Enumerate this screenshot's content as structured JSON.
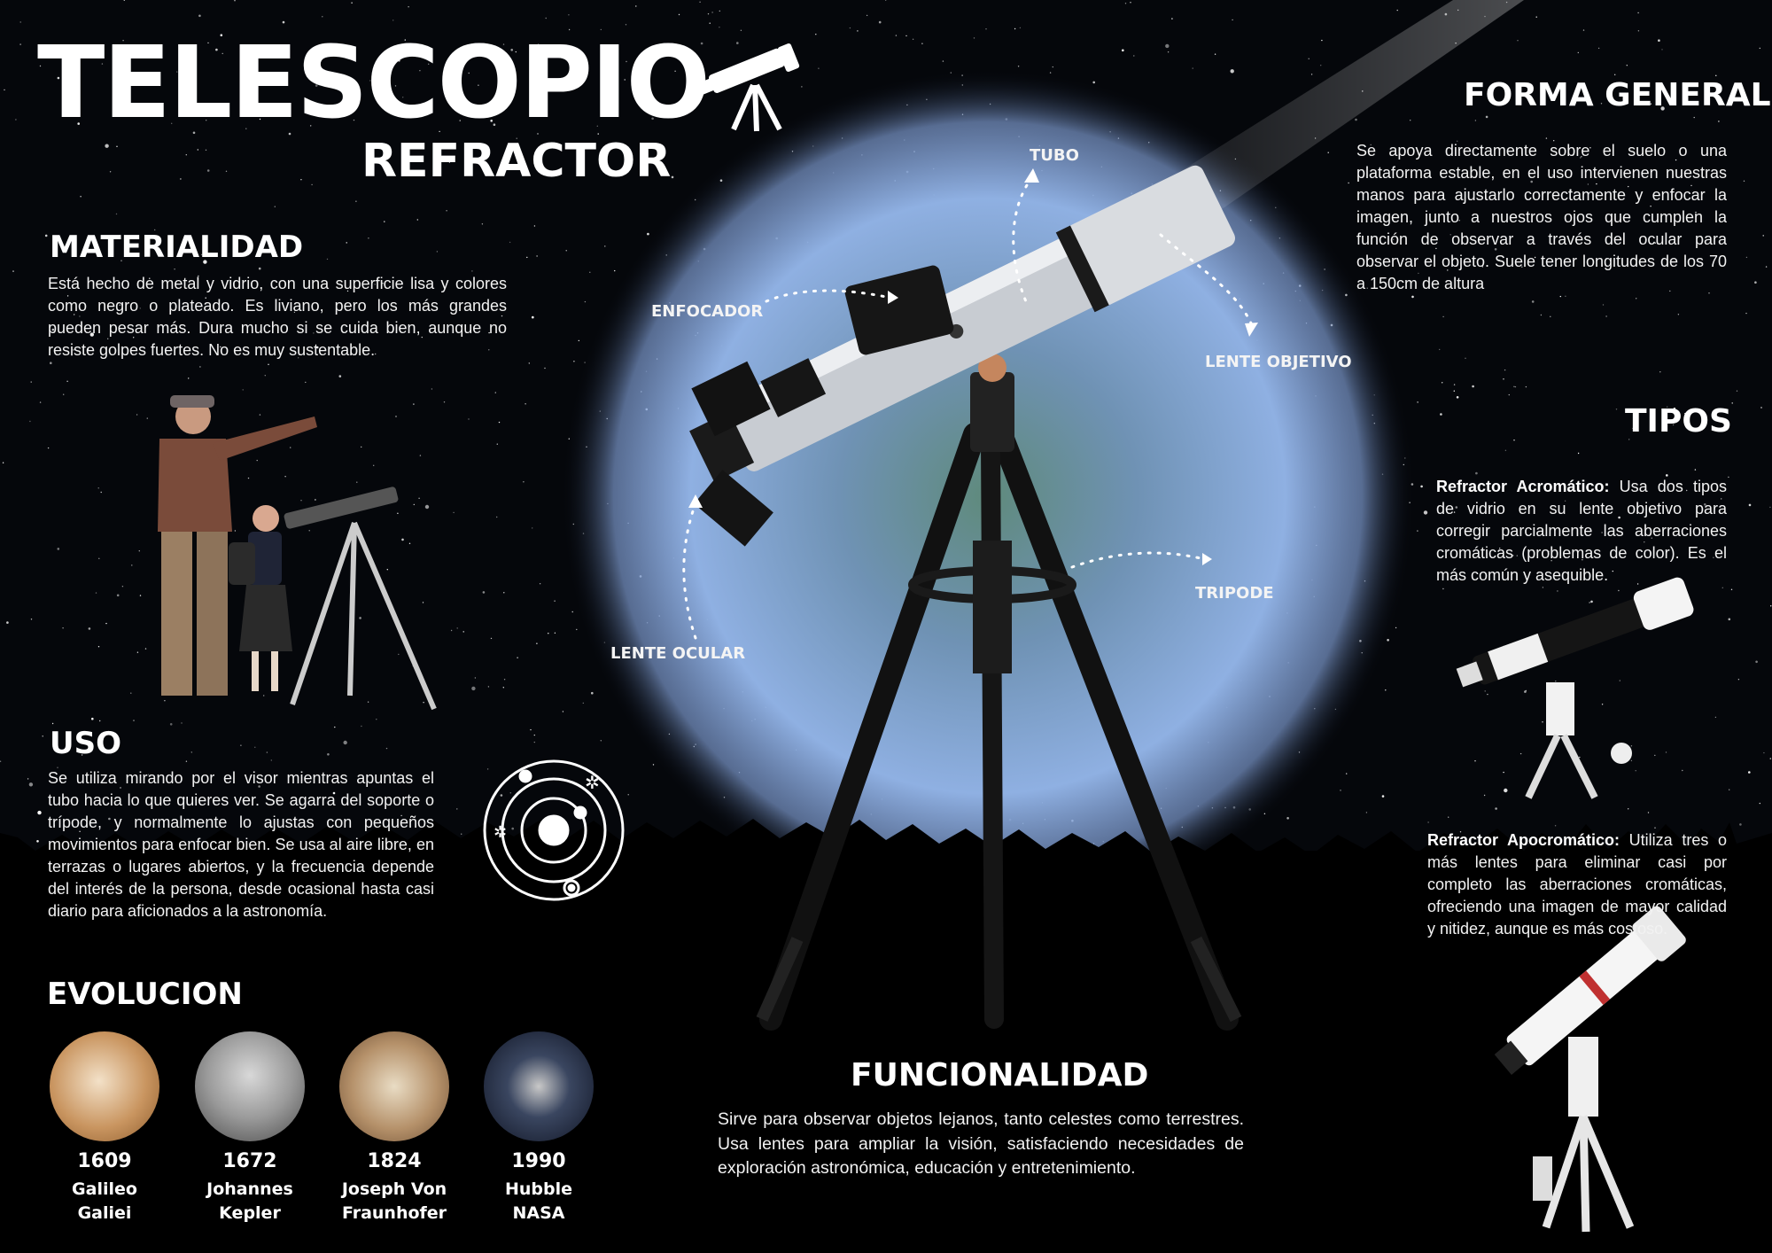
{
  "header": {
    "title": "TELESCOPIO",
    "subtitle": "REFRACTOR"
  },
  "materialidad": {
    "heading": "MATERIALIDAD",
    "text": "Está hecho de metal y vidrio, con una superficie lisa y colores como negro o plateado. Es liviano, pero los más grandes pueden pesar más. Dura mucho si se cuida bien, aunque no resiste golpes fuertes. No es muy sustentable."
  },
  "uso": {
    "heading": "USO",
    "text": "Se utiliza mirando por el visor mientras apuntas el tubo hacia lo que quieres ver. Se agarra del soporte o trípode, y normalmente lo ajustas con pequeños movimientos para enfocar bien. Se usa al aire libre, en terrazas o lugares abiertos, y la frecuencia depende del interés de la persona, desde ocasional hasta casi diario para aficionados a la astronomía."
  },
  "evolucion": {
    "heading": "EVOLUCION",
    "items": [
      {
        "year": "1609",
        "line1": "Galileo",
        "line2": "Galiei"
      },
      {
        "year": "1672",
        "line1": "Johannes",
        "line2": "Kepler"
      },
      {
        "year": "1824",
        "line1": "Joseph Von",
        "line2": "Fraunhofer"
      },
      {
        "year": "1990",
        "line1": "Hubble",
        "line2": "NASA"
      }
    ]
  },
  "parts": {
    "tubo": "TUBO",
    "enfocador": "ENFOCADOR",
    "lente_objetivo": "LENTE OBJETIVO",
    "tripode": "TRIPODE",
    "lente_ocular": "LENTE OCULAR"
  },
  "funcionalidad": {
    "heading": "FUNCIONALIDAD",
    "text": "Sirve para observar objetos lejanos, tanto celestes como terrestres. Usa lentes para ampliar la visión, satisfaciendo necesidades de exploración astronómica, educación y entretenimiento."
  },
  "forma_general": {
    "heading": "FORMA GENERAL",
    "text": "Se apoya directamente sobre el suelo o una plataforma estable, en el uso intervienen nuestras manos para ajustarlo correctamente y enfocar la imagen, junto a nuestros ojos que cumplen la función de observar a través del ocular para observar el objeto. Suele tener longitudes de los 70 a 150cm de altura"
  },
  "tipos": {
    "heading": "TIPOS",
    "acromatico": {
      "name": "Refractor Acromático:",
      "text": " Usa dos tipos de vidrio en su lente objetivo para corregir parcialmente las aberraciones cromáticas (problemas de color). Es el más común y asequible."
    },
    "apocromatico": {
      "name": "Refractor Apocromático:",
      "text": " Utiliza tres o más lentes para eliminar casi por completo las aberraciones cromáticas, ofreciendo una imagen de mayor calidad y nitidez, aunque es más costoso."
    }
  },
  "colors": {
    "background": "#05070b",
    "glow": "#a9c4ee",
    "text": "#ffffff"
  },
  "icons": [
    "telescope-icon",
    "solar-system-icon"
  ]
}
